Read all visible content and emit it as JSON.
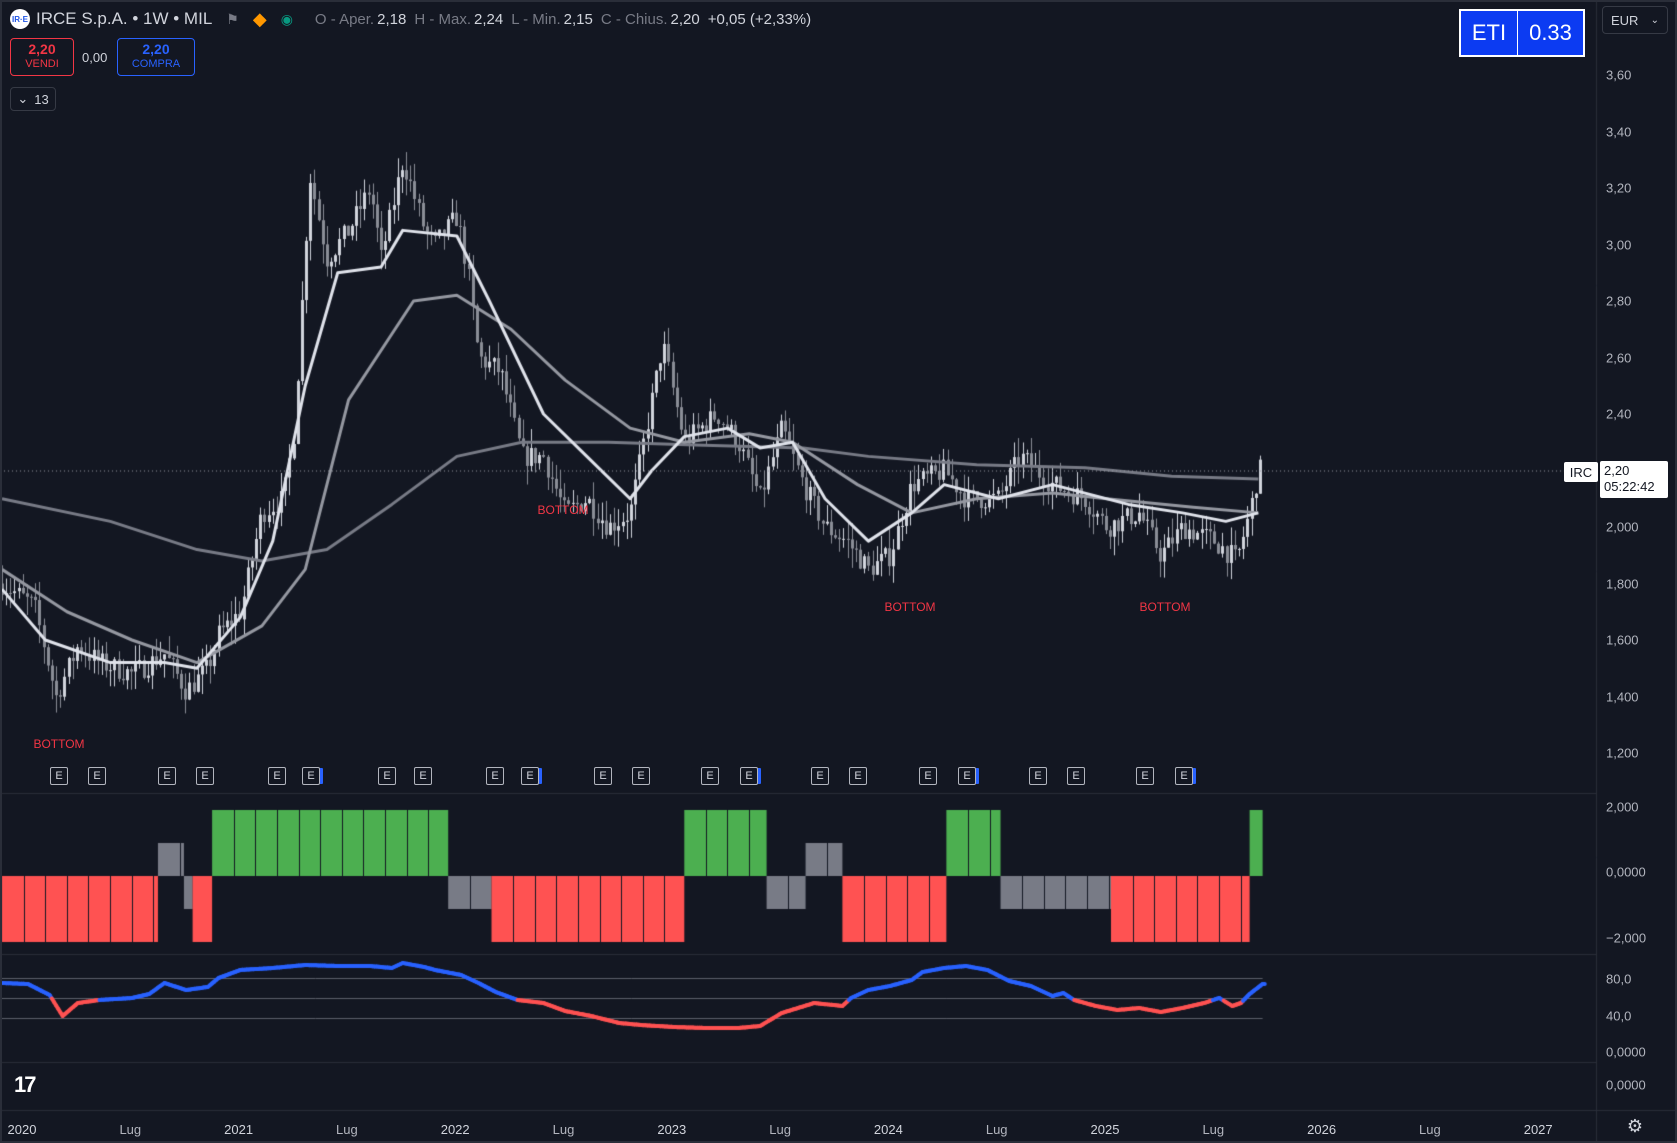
{
  "header": {
    "symbol": "IRCE S.p.A. • 1W • MIL",
    "logo_text": "IR·E",
    "icons": [
      "flag-icon",
      "diamond-icon",
      "market-status-icon"
    ],
    "ohlc": [
      {
        "label": "O - Aper.",
        "value": "2,18"
      },
      {
        "label": "H - Max.",
        "value": "2,24"
      },
      {
        "label": "L - Min.",
        "value": "2,15"
      },
      {
        "label": "C - Chius.",
        "value": "2,20"
      }
    ],
    "change": "+0,05 (+2,33%)"
  },
  "trade": {
    "sell_price": "2,20",
    "sell_label": "VENDI",
    "spread": "0,00",
    "buy_price": "2,20",
    "buy_label": "COMPRA"
  },
  "indicators_toggle": "13",
  "eti": {
    "label": "ETI",
    "value": "0.33"
  },
  "currency": "EUR",
  "price_axis": [
    "3,60",
    "3,40",
    "3,20",
    "3,00",
    "2,80",
    "2,60",
    "2,40",
    "2,000",
    "1,800",
    "1,600",
    "1,400",
    "1,200"
  ],
  "price_axis_values": [
    3.6,
    3.4,
    3.2,
    3.0,
    2.8,
    2.6,
    2.4,
    2.0,
    1.8,
    1.6,
    1.4,
    1.2
  ],
  "osc_axis": [
    "2,000",
    "0,0000",
    "−2,000"
  ],
  "rsi_axis": [
    "80,0",
    "40,0",
    "0,0000"
  ],
  "extra_axis": "0,0000",
  "time_axis": [
    {
      "label": "2020",
      "year": true
    },
    {
      "label": "Lug",
      "year": false
    },
    {
      "label": "2021",
      "year": true
    },
    {
      "label": "Lug",
      "year": false
    },
    {
      "label": "2022",
      "year": true
    },
    {
      "label": "Lug",
      "year": false
    },
    {
      "label": "2023",
      "year": true
    },
    {
      "label": "Lug",
      "year": false
    },
    {
      "label": "2024",
      "year": true
    },
    {
      "label": "Lug",
      "year": false
    },
    {
      "label": "2025",
      "year": true
    },
    {
      "label": "Lug",
      "year": false
    },
    {
      "label": "2026",
      "year": true
    },
    {
      "label": "Lug",
      "year": false
    },
    {
      "label": "2027",
      "year": true
    }
  ],
  "last_price": {
    "symbol": "IRC",
    "price": "2,20",
    "countdown": "05:22:42"
  },
  "annotations": [
    {
      "text": "BOTTOM"
    },
    {
      "text": "BOTTOM"
    },
    {
      "text": "BOTTOM"
    },
    {
      "text": "BOTTOM"
    }
  ],
  "earnings_marker": "E",
  "chart_data": [
    {
      "type": "candlestick",
      "title": "IRCE S.p.A. • 1W • MIL",
      "ylim": [
        1.2,
        3.6
      ],
      "x_range": [
        "2020",
        "2025-09"
      ],
      "close_anchors": [
        [
          2020.0,
          1.8
        ],
        [
          2020.15,
          1.72
        ],
        [
          2020.25,
          1.4
        ],
        [
          2020.35,
          1.58
        ],
        [
          2020.45,
          1.52
        ],
        [
          2020.6,
          1.48
        ],
        [
          2020.75,
          1.55
        ],
        [
          2020.85,
          1.42
        ],
        [
          2020.95,
          1.5
        ],
        [
          2021.0,
          1.62
        ],
        [
          2021.1,
          1.7
        ],
        [
          2021.2,
          2.05
        ],
        [
          2021.3,
          2.1
        ],
        [
          2021.35,
          2.35
        ],
        [
          2021.42,
          3.25
        ],
        [
          2021.5,
          2.95
        ],
        [
          2021.6,
          3.05
        ],
        [
          2021.7,
          3.2
        ],
        [
          2021.75,
          2.95
        ],
        [
          2021.85,
          3.3
        ],
        [
          2021.95,
          3.05
        ],
        [
          2022.0,
          3.0
        ],
        [
          2022.1,
          3.1
        ],
        [
          2022.15,
          2.9
        ],
        [
          2022.2,
          2.6
        ],
        [
          2022.3,
          2.55
        ],
        [
          2022.4,
          2.25
        ],
        [
          2022.5,
          2.25
        ],
        [
          2022.6,
          2.05
        ],
        [
          2022.7,
          2.1
        ],
        [
          2022.8,
          2.0
        ],
        [
          2022.9,
          2.05
        ],
        [
          2023.0,
          2.45
        ],
        [
          2023.05,
          2.65
        ],
        [
          2023.15,
          2.3
        ],
        [
          2023.3,
          2.4
        ],
        [
          2023.4,
          2.3
        ],
        [
          2023.5,
          2.1
        ],
        [
          2023.6,
          2.35
        ],
        [
          2023.7,
          2.15
        ],
        [
          2023.8,
          2.0
        ],
        [
          2023.9,
          1.95
        ],
        [
          2024.0,
          1.85
        ],
        [
          2024.1,
          1.9
        ],
        [
          2024.2,
          2.15
        ],
        [
          2024.35,
          2.2
        ],
        [
          2024.45,
          2.1
        ],
        [
          2024.6,
          2.1
        ],
        [
          2024.7,
          2.25
        ],
        [
          2024.85,
          2.15
        ],
        [
          2025.0,
          2.1
        ],
        [
          2025.1,
          2.0
        ],
        [
          2025.25,
          2.05
        ],
        [
          2025.35,
          1.9
        ],
        [
          2025.45,
          2.0
        ],
        [
          2025.6,
          1.95
        ],
        [
          2025.7,
          1.88
        ],
        [
          2025.76,
          2.05
        ],
        [
          2025.8,
          2.2
        ]
      ],
      "sma_fast": [
        [
          2020.0,
          1.78
        ],
        [
          2020.2,
          1.6
        ],
        [
          2020.5,
          1.52
        ],
        [
          2020.75,
          1.52
        ],
        [
          2020.9,
          1.5
        ],
        [
          2021.1,
          1.68
        ],
        [
          2021.25,
          1.95
        ],
        [
          2021.4,
          2.5
        ],
        [
          2021.55,
          2.9
        ],
        [
          2021.75,
          2.92
        ],
        [
          2021.85,
          3.05
        ],
        [
          2022.1,
          3.03
        ],
        [
          2022.25,
          2.8
        ],
        [
          2022.5,
          2.4
        ],
        [
          2022.7,
          2.25
        ],
        [
          2022.9,
          2.1
        ],
        [
          2023.0,
          2.2
        ],
        [
          2023.15,
          2.32
        ],
        [
          2023.35,
          2.35
        ],
        [
          2023.5,
          2.28
        ],
        [
          2023.65,
          2.3
        ],
        [
          2023.8,
          2.1
        ],
        [
          2024.0,
          1.95
        ],
        [
          2024.2,
          2.05
        ],
        [
          2024.35,
          2.15
        ],
        [
          2024.6,
          2.1
        ],
        [
          2024.85,
          2.15
        ],
        [
          2025.0,
          2.12
        ],
        [
          2025.2,
          2.08
        ],
        [
          2025.45,
          2.05
        ],
        [
          2025.65,
          2.02
        ],
        [
          2025.8,
          2.05
        ]
      ],
      "sma_mid": [
        [
          2020.0,
          1.85
        ],
        [
          2020.3,
          1.7
        ],
        [
          2020.6,
          1.6
        ],
        [
          2020.9,
          1.52
        ],
        [
          2021.2,
          1.65
        ],
        [
          2021.4,
          1.85
        ],
        [
          2021.6,
          2.45
        ],
        [
          2021.9,
          2.8
        ],
        [
          2022.1,
          2.82
        ],
        [
          2022.35,
          2.7
        ],
        [
          2022.6,
          2.52
        ],
        [
          2022.9,
          2.35
        ],
        [
          2023.15,
          2.3
        ],
        [
          2023.45,
          2.33
        ],
        [
          2023.65,
          2.3
        ],
        [
          2023.95,
          2.15
        ],
        [
          2024.2,
          2.05
        ],
        [
          2024.5,
          2.1
        ],
        [
          2024.85,
          2.12
        ],
        [
          2025.1,
          2.1
        ],
        [
          2025.5,
          2.07
        ],
        [
          2025.8,
          2.05
        ]
      ],
      "sma_slow": [
        [
          2020.0,
          2.1
        ],
        [
          2020.5,
          2.02
        ],
        [
          2020.9,
          1.92
        ],
        [
          2021.2,
          1.88
        ],
        [
          2021.5,
          1.92
        ],
        [
          2021.8,
          2.08
        ],
        [
          2022.1,
          2.25
        ],
        [
          2022.4,
          2.3
        ],
        [
          2022.8,
          2.3
        ],
        [
          2023.2,
          2.29
        ],
        [
          2023.7,
          2.28
        ],
        [
          2024.0,
          2.25
        ],
        [
          2024.5,
          2.22
        ],
        [
          2025.0,
          2.21
        ],
        [
          2025.4,
          2.18
        ],
        [
          2025.8,
          2.17
        ]
      ],
      "last": 2.2
    },
    {
      "type": "bar",
      "title": "",
      "ylim": [
        -2,
        2
      ],
      "x_range": [
        "2020",
        "2025-09"
      ],
      "segments": [
        {
          "from": 2020.0,
          "to": 2020.72,
          "value": -2,
          "color": "#ff5252"
        },
        {
          "from": 2020.72,
          "to": 2020.84,
          "value": 1,
          "color": "#787b86"
        },
        {
          "from": 2020.84,
          "to": 2020.88,
          "value": -1,
          "color": "#787b86"
        },
        {
          "from": 2020.88,
          "to": 2020.97,
          "value": -2,
          "color": "#ff5252"
        },
        {
          "from": 2020.97,
          "to": 2022.06,
          "value": 2,
          "color": "#4caf50"
        },
        {
          "from": 2022.06,
          "to": 2022.26,
          "value": -1,
          "color": "#787b86"
        },
        {
          "from": 2022.26,
          "to": 2023.15,
          "value": -2,
          "color": "#ff5252"
        },
        {
          "from": 2023.15,
          "to": 2023.53,
          "value": 2,
          "color": "#4caf50"
        },
        {
          "from": 2023.53,
          "to": 2023.71,
          "value": -1,
          "color": "#787b86"
        },
        {
          "from": 2023.71,
          "to": 2023.88,
          "value": 1,
          "color": "#787b86"
        },
        {
          "from": 2023.88,
          "to": 2024.36,
          "value": -2,
          "color": "#ff5252"
        },
        {
          "from": 2024.36,
          "to": 2024.61,
          "value": 2,
          "color": "#4caf50"
        },
        {
          "from": 2024.61,
          "to": 2025.12,
          "value": -1,
          "color": "#787b86"
        },
        {
          "from": 2025.12,
          "to": 2025.76,
          "value": -2,
          "color": "#ff5252"
        },
        {
          "from": 2025.76,
          "to": 2025.82,
          "value": 2,
          "color": "#4caf50"
        }
      ]
    },
    {
      "type": "line",
      "title": "",
      "ylim": [
        0,
        100
      ],
      "levels": [
        80,
        60,
        40
      ],
      "x_range": [
        "2020",
        "2025-09"
      ],
      "threshold": 58,
      "colors": {
        "above": "#2962ff",
        "below": "#ff5252"
      },
      "points": [
        [
          2020.0,
          75
        ],
        [
          2020.12,
          74
        ],
        [
          2020.22,
          63
        ],
        [
          2020.28,
          42
        ],
        [
          2020.35,
          55
        ],
        [
          2020.45,
          58
        ],
        [
          2020.6,
          60
        ],
        [
          2020.68,
          64
        ],
        [
          2020.75,
          75
        ],
        [
          2020.85,
          68
        ],
        [
          2020.95,
          71
        ],
        [
          2021.0,
          80
        ],
        [
          2021.1,
          88
        ],
        [
          2021.25,
          90
        ],
        [
          2021.4,
          93
        ],
        [
          2021.55,
          92
        ],
        [
          2021.7,
          92
        ],
        [
          2021.8,
          90
        ],
        [
          2021.85,
          95
        ],
        [
          2021.95,
          91
        ],
        [
          2022.0,
          88
        ],
        [
          2022.12,
          83
        ],
        [
          2022.2,
          75
        ],
        [
          2022.28,
          66
        ],
        [
          2022.38,
          58
        ],
        [
          2022.5,
          55
        ],
        [
          2022.6,
          47
        ],
        [
          2022.72,
          42
        ],
        [
          2022.85,
          35
        ],
        [
          2022.95,
          33
        ],
        [
          2023.1,
          31
        ],
        [
          2023.25,
          30
        ],
        [
          2023.4,
          30
        ],
        [
          2023.5,
          32
        ],
        [
          2023.6,
          45
        ],
        [
          2023.75,
          55
        ],
        [
          2023.88,
          52
        ],
        [
          2023.92,
          60
        ],
        [
          2024.0,
          68
        ],
        [
          2024.1,
          72
        ],
        [
          2024.2,
          78
        ],
        [
          2024.25,
          86
        ],
        [
          2024.35,
          90
        ],
        [
          2024.45,
          92
        ],
        [
          2024.55,
          88
        ],
        [
          2024.65,
          77
        ],
        [
          2024.75,
          72
        ],
        [
          2024.85,
          62
        ],
        [
          2024.9,
          65
        ],
        [
          2024.95,
          58
        ],
        [
          2025.05,
          52
        ],
        [
          2025.15,
          48
        ],
        [
          2025.25,
          50
        ],
        [
          2025.35,
          46
        ],
        [
          2025.45,
          50
        ],
        [
          2025.55,
          55
        ],
        [
          2025.62,
          60
        ],
        [
          2025.68,
          52
        ],
        [
          2025.72,
          55
        ],
        [
          2025.76,
          64
        ],
        [
          2025.82,
          74
        ]
      ]
    }
  ]
}
